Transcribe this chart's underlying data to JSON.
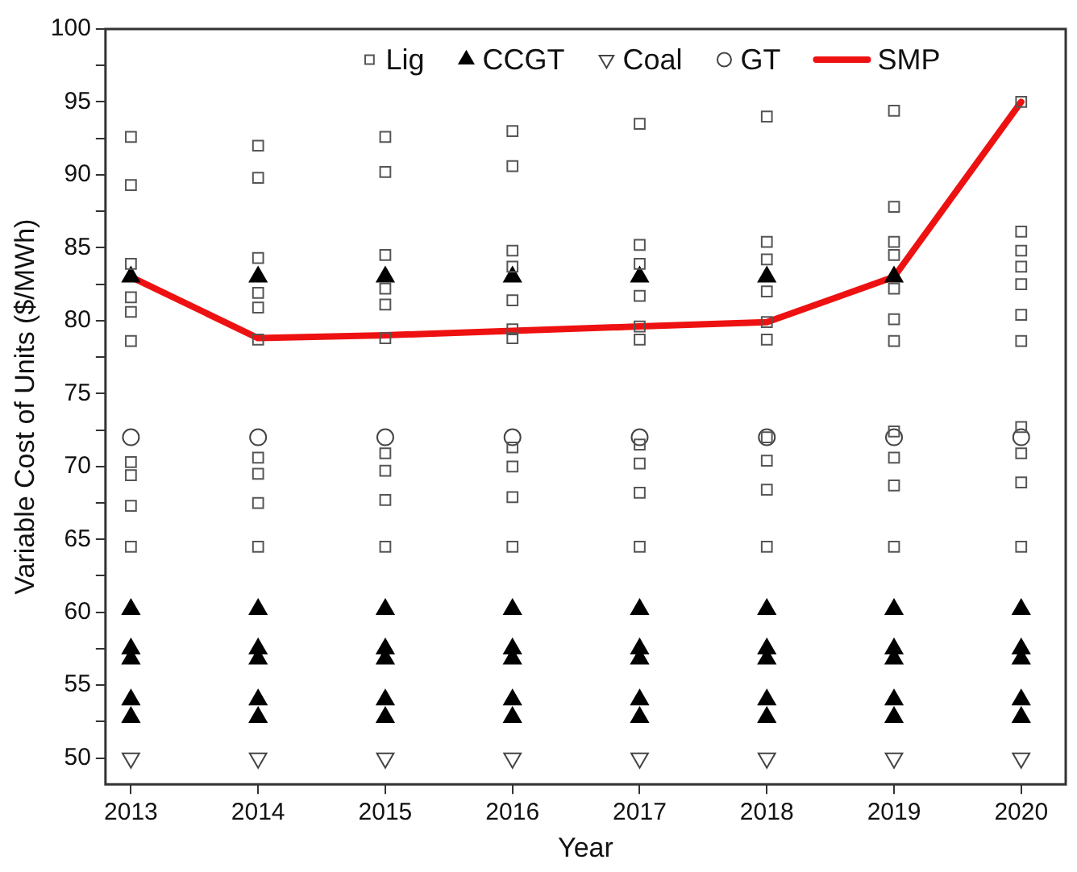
{
  "chart_data": {
    "type": "scatter",
    "xlabel": "Year",
    "ylabel": "Variable Cost of Units ($/MWh)",
    "xlim": [
      2012.8,
      2020.35
    ],
    "xticks": [
      2013,
      2014,
      2015,
      2016,
      2017,
      2018,
      2019,
      2020
    ],
    "ylim": [
      48.2,
      100
    ],
    "yticks": [
      50,
      {
        "value": 52.5,
        "label": null
      },
      55,
      {
        "value": 57.5,
        "label": null
      },
      60,
      {
        "value": 62.5,
        "label": null
      },
      65,
      {
        "value": 67.5,
        "label": null
      },
      70,
      {
        "value": 72.5,
        "label": null
      },
      75,
      {
        "value": 77.5,
        "label": null
      },
      80,
      {
        "value": 82.5,
        "label": null
      },
      85,
      {
        "value": 87.5,
        "label": null
      },
      90,
      {
        "value": 92.5,
        "label": null
      },
      95,
      {
        "value": 97.5,
        "label": null
      },
      100
    ],
    "grid": false,
    "legend": "top",
    "series": [
      {
        "name": "Lig",
        "marker": "square",
        "color": "#555555",
        "x": [
          2013,
          2013,
          2013,
          2013,
          2013,
          2013,
          2013,
          2013,
          2013,
          2013,
          2014,
          2014,
          2014,
          2014,
          2014,
          2014,
          2014,
          2014,
          2014,
          2014,
          2015,
          2015,
          2015,
          2015,
          2015,
          2015,
          2015,
          2015,
          2015,
          2015,
          2016,
          2016,
          2016,
          2016,
          2016,
          2016,
          2016,
          2016,
          2016,
          2016,
          2016,
          2017,
          2017,
          2017,
          2017,
          2017,
          2017,
          2017,
          2017,
          2017,
          2017,
          2018,
          2018,
          2018,
          2018,
          2018,
          2018,
          2018,
          2018,
          2018,
          2018,
          2019,
          2019,
          2019,
          2019,
          2019,
          2019,
          2019,
          2019,
          2019,
          2019,
          2019,
          2020,
          2020,
          2020,
          2020,
          2020,
          2020,
          2020,
          2020,
          2020,
          2020,
          2020
        ],
        "values": [
          92.6,
          89.3,
          83.9,
          81.6,
          80.6,
          78.6,
          70.3,
          69.4,
          67.3,
          64.5,
          92.0,
          89.8,
          84.3,
          81.9,
          80.9,
          78.7,
          70.6,
          69.5,
          67.5,
          64.5,
          92.6,
          90.2,
          84.5,
          82.2,
          81.1,
          78.8,
          70.9,
          69.7,
          67.7,
          64.5,
          93.0,
          90.6,
          84.8,
          83.7,
          81.4,
          79.4,
          78.8,
          71.3,
          70.0,
          67.9,
          64.5,
          93.5,
          85.2,
          83.9,
          81.7,
          79.6,
          78.7,
          71.5,
          70.2,
          68.2,
          64.5,
          94.0,
          85.4,
          84.2,
          82.0,
          79.9,
          78.7,
          72.0,
          70.4,
          68.4,
          64.5,
          94.4,
          87.8,
          85.4,
          84.5,
          82.2,
          80.1,
          78.6,
          72.4,
          70.6,
          68.7,
          64.5,
          95.0,
          86.1,
          84.8,
          83.7,
          82.5,
          80.4,
          78.6,
          72.7,
          70.9,
          68.9,
          64.5
        ]
      },
      {
        "name": "CCGT",
        "marker": "triangle",
        "color": "#000000",
        "x": [
          2013,
          2013,
          2013,
          2013,
          2013,
          2013,
          2014,
          2014,
          2014,
          2014,
          2014,
          2014,
          2015,
          2015,
          2015,
          2015,
          2015,
          2015,
          2016,
          2016,
          2016,
          2016,
          2016,
          2016,
          2017,
          2017,
          2017,
          2017,
          2017,
          2017,
          2018,
          2018,
          2018,
          2018,
          2018,
          2018,
          2019,
          2019,
          2019,
          2019,
          2019,
          2019,
          2020,
          2020,
          2020,
          2020,
          2020
        ],
        "values": [
          83.0,
          60.2,
          57.5,
          56.8,
          54.0,
          52.8,
          83.0,
          60.2,
          57.5,
          56.8,
          54.0,
          52.8,
          83.0,
          60.2,
          57.5,
          56.8,
          54.0,
          52.8,
          83.0,
          60.2,
          57.5,
          56.8,
          54.0,
          52.8,
          83.0,
          60.2,
          57.5,
          56.8,
          54.0,
          52.8,
          83.0,
          60.2,
          57.5,
          56.8,
          54.0,
          52.8,
          83.0,
          60.2,
          57.5,
          56.8,
          54.0,
          52.8,
          60.2,
          57.5,
          56.8,
          54.0,
          52.8
        ]
      },
      {
        "name": "Coal",
        "marker": "triangle-down",
        "color": "#444444",
        "x": [
          2013,
          2014,
          2015,
          2016,
          2017,
          2018,
          2019,
          2020
        ],
        "values": [
          50,
          50,
          50,
          50,
          50,
          50,
          50,
          50
        ]
      },
      {
        "name": "GT",
        "marker": "circle",
        "color": "#444444",
        "x": [
          2013,
          2014,
          2015,
          2016,
          2017,
          2018,
          2019,
          2020
        ],
        "values": [
          72,
          72,
          72,
          72,
          72,
          72,
          72,
          72
        ]
      },
      {
        "name": "SMP",
        "type": "line",
        "marker": "none",
        "color": "#ee1111",
        "x": [
          2013,
          2014,
          2015,
          2016,
          2017,
          2018,
          2019,
          2020
        ],
        "values": [
          83.0,
          78.8,
          79.0,
          79.3,
          79.6,
          79.9,
          83.0,
          95.0
        ]
      }
    ]
  }
}
